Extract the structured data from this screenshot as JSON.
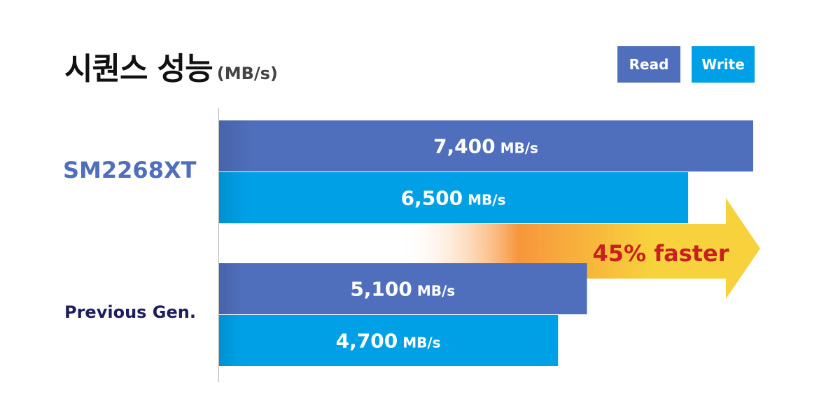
{
  "header": {
    "title": "시퀀스 성능",
    "unit": "(MB/s)"
  },
  "legend": {
    "read_label": "Read",
    "write_label": "Write"
  },
  "colors": {
    "read": "#4F6EBB",
    "write": "#00A0E6",
    "new_label": "#4F6EBB",
    "old_label": "#1E1E5C",
    "highlight_text": "#C8201E",
    "arrow_start": "#FFFFFF",
    "arrow_mid": "#F7963C",
    "arrow_end": "#F7D23C"
  },
  "annotation": {
    "text": "45% faster"
  },
  "chart_data": {
    "type": "bar",
    "orientation": "horizontal",
    "title": "시퀀스 성능",
    "unit": "MB/s",
    "categories": [
      "SM2268XT",
      "Previous Gen."
    ],
    "series": [
      {
        "name": "Read",
        "values": [
          7400,
          5100
        ],
        "labels": [
          "7,400",
          "5,100"
        ]
      },
      {
        "name": "Write",
        "values": [
          6500,
          4700
        ],
        "labels": [
          "6,500",
          "4,700"
        ]
      }
    ],
    "value_unit_label": "MB/s",
    "xlim": [
      0,
      7400
    ],
    "grid": false,
    "legend_position": "top-right"
  }
}
